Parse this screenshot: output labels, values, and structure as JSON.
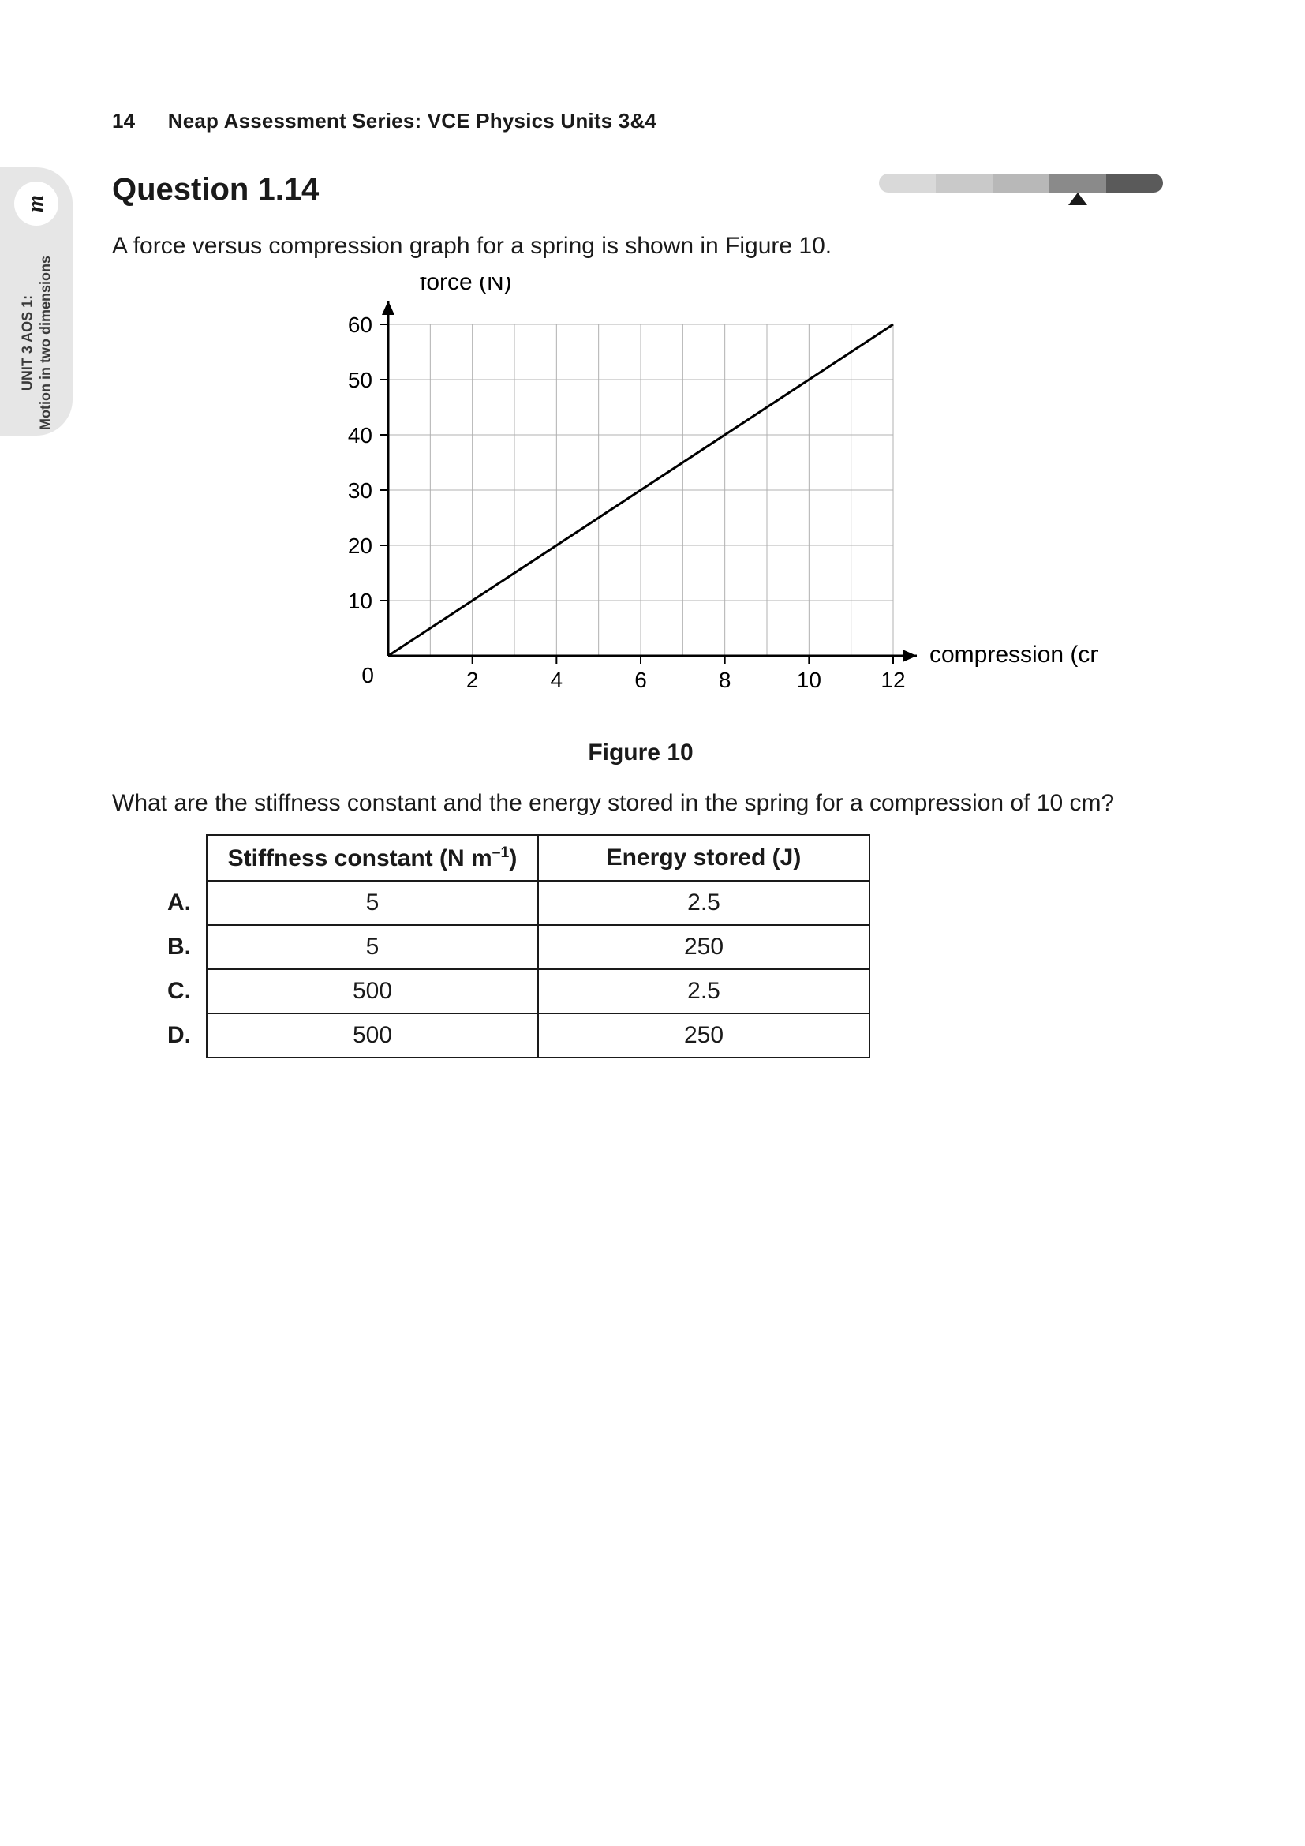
{
  "page_number": "14",
  "series_title": "Neap Assessment Series: VCE Physics Units 3&4",
  "side_tab": {
    "icon_label": "m",
    "line1": "UNIT 3 AOS 1:",
    "line2": "Motion in two dimensions"
  },
  "difficulty": {
    "segments": [
      "#d9d9d9",
      "#c9c9c9",
      "#b8b8b8",
      "#8a8a8a",
      "#5a5a5a"
    ],
    "pointer_index": 3,
    "background": "#ffffff"
  },
  "question": {
    "title": "Question 1.14",
    "intro": "A force versus compression graph for a spring is shown in Figure 10.",
    "figure_caption": "Figure 10",
    "prompt": "What are the stiffness constant and the energy stored in the spring for a compression of 10 cm?"
  },
  "chart": {
    "type": "line",
    "y_title": "force (N)",
    "x_title": "compression (cm)",
    "xlim": [
      0,
      12
    ],
    "ylim": [
      0,
      60
    ],
    "xtick_step": 2,
    "xtick_minor_step": 1,
    "ytick_step": 10,
    "xticks": [
      2,
      4,
      6,
      8,
      10,
      12
    ],
    "yticks": [
      10,
      20,
      30,
      40,
      50,
      60
    ],
    "origin_label": "0",
    "line_points": [
      [
        0,
        0
      ],
      [
        12,
        60
      ]
    ],
    "line_width": 3,
    "line_color": "#000000",
    "grid_color": "#b0b0b0",
    "axis_color": "#000000",
    "tick_fontsize": 28,
    "title_fontsize": 30,
    "background_color": "#ffffff"
  },
  "answer_table": {
    "headers": [
      "Stiffness constant (N m⁻¹)",
      "Energy stored (J)"
    ],
    "rows": [
      {
        "label": "A.",
        "c1": "5",
        "c2": "2.5"
      },
      {
        "label": "B.",
        "c1": "5",
        "c2": "250"
      },
      {
        "label": "C.",
        "c1": "500",
        "c2": "2.5"
      },
      {
        "label": "D.",
        "c1": "500",
        "c2": "250"
      }
    ]
  }
}
